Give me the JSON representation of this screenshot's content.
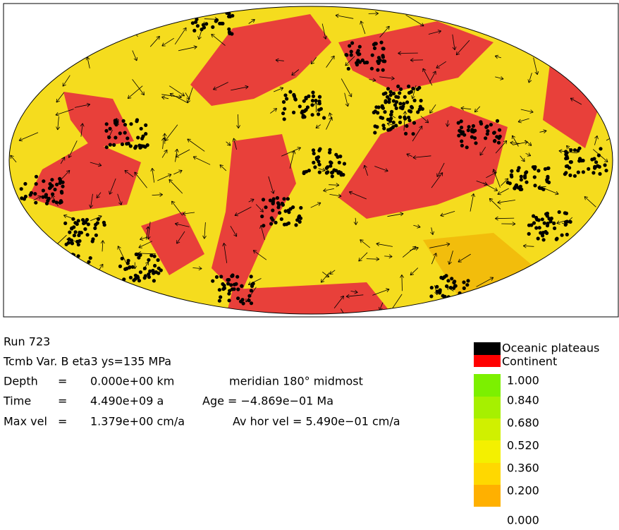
{
  "info": {
    "run": "Run 723",
    "model": "Tcmb Var. B eta3 ys=135 MPa",
    "depth": {
      "label": "Depth",
      "eq": "=",
      "value": "0.000e+00 km",
      "extra": "meridian 180° midmost"
    },
    "time": {
      "label": "Time",
      "eq": "=",
      "value": "4.490e+09 a",
      "extra": "Age = −4.869e−01 Ma"
    },
    "vel": {
      "label": "Max vel",
      "eq": "=",
      "value": "1.379e+00 cm/a",
      "extra": "Av hor vel =  5.490e−01 cm/a"
    }
  },
  "legend": {
    "plateaus": "Oceanic plateaus",
    "continent": "Continent"
  },
  "colorbar": {
    "labels": [
      "1.000",
      "0.840",
      "0.680",
      "0.520",
      "0.360",
      "0.200",
      "0.000"
    ]
  }
}
